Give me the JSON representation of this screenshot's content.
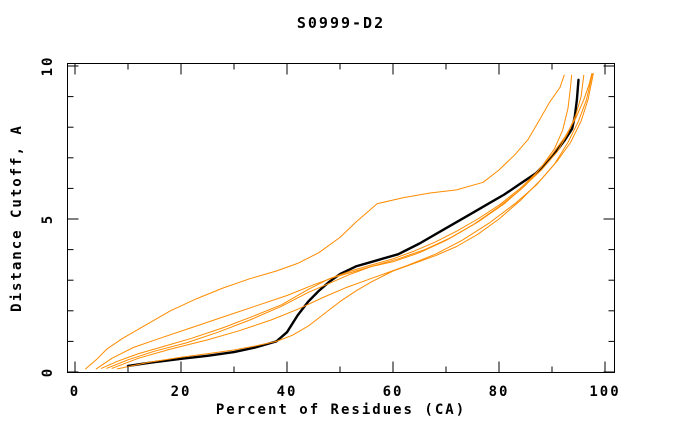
{
  "chart_data": {
    "type": "line",
    "title": "S0999-D2",
    "xlabel": "Percent of Residues (CA)",
    "ylabel": "Distance Cutoff, A",
    "xlim": [
      0,
      100
    ],
    "ylim": [
      0,
      10
    ],
    "x_major_ticks": [
      0,
      20,
      40,
      60,
      80,
      100
    ],
    "x_minor_ticks": [
      10,
      30,
      50,
      70,
      90
    ],
    "y_major_ticks": [
      0,
      5,
      10
    ],
    "y_minor_ticks": [
      1,
      2,
      3,
      4,
      6,
      7,
      8,
      9
    ],
    "grid": false,
    "legend": "none",
    "background_color": "#ffffff",
    "axis_color": "#000000",
    "model_color": "#000000",
    "reference_color": "#ff8c00",
    "series": [
      {
        "name": "black-model",
        "color": "#000000",
        "width": 2.4,
        "points": [
          [
            10,
            0.2
          ],
          [
            14,
            0.3
          ],
          [
            20,
            0.43
          ],
          [
            25,
            0.53
          ],
          [
            30,
            0.65
          ],
          [
            34,
            0.8
          ],
          [
            38,
            1.0
          ],
          [
            40,
            1.3
          ],
          [
            42,
            1.85
          ],
          [
            44,
            2.3
          ],
          [
            46,
            2.65
          ],
          [
            48,
            2.95
          ],
          [
            50,
            3.2
          ],
          [
            53,
            3.45
          ],
          [
            57,
            3.65
          ],
          [
            61,
            3.85
          ],
          [
            65,
            4.2
          ],
          [
            70,
            4.7
          ],
          [
            75,
            5.2
          ],
          [
            78,
            5.5
          ],
          [
            81,
            5.8
          ],
          [
            84,
            6.15
          ],
          [
            87,
            6.5
          ],
          [
            89,
            6.85
          ],
          [
            91,
            7.25
          ],
          [
            92.5,
            7.6
          ],
          [
            93.8,
            7.95
          ],
          [
            94.3,
            8.35
          ],
          [
            94.7,
            8.9
          ],
          [
            95,
            9.55
          ]
        ]
      },
      {
        "name": "orange-1",
        "color": "#ff8c00",
        "width": 1,
        "points": [
          [
            2,
            0.1
          ],
          [
            4,
            0.4
          ],
          [
            6,
            0.75
          ],
          [
            9,
            1.1
          ],
          [
            13,
            1.5
          ],
          [
            18,
            2.0
          ],
          [
            23,
            2.4
          ],
          [
            28,
            2.75
          ],
          [
            33,
            3.05
          ],
          [
            38,
            3.3
          ],
          [
            42,
            3.55
          ],
          [
            46,
            3.9
          ],
          [
            50,
            4.4
          ],
          [
            53,
            4.9
          ],
          [
            57,
            5.5
          ],
          [
            62,
            5.7
          ],
          [
            67,
            5.85
          ],
          [
            72,
            5.95
          ],
          [
            77,
            6.2
          ],
          [
            80,
            6.6
          ],
          [
            83,
            7.1
          ],
          [
            85.5,
            7.6
          ],
          [
            87.5,
            8.2
          ],
          [
            89.5,
            8.8
          ],
          [
            91.5,
            9.3
          ],
          [
            92.3,
            9.7
          ]
        ]
      },
      {
        "name": "orange-2",
        "color": "#ff8c00",
        "width": 1,
        "points": [
          [
            5,
            0.12
          ],
          [
            8,
            0.35
          ],
          [
            12,
            0.6
          ],
          [
            17,
            0.85
          ],
          [
            22,
            1.1
          ],
          [
            28,
            1.45
          ],
          [
            34,
            1.85
          ],
          [
            39,
            2.2
          ],
          [
            44,
            2.7
          ],
          [
            48,
            3.05
          ],
          [
            52,
            3.3
          ],
          [
            56,
            3.5
          ],
          [
            60,
            3.7
          ],
          [
            64,
            3.95
          ],
          [
            68,
            4.25
          ],
          [
            72,
            4.6
          ],
          [
            76,
            5.0
          ],
          [
            80,
            5.45
          ],
          [
            84,
            6.0
          ],
          [
            87,
            6.5
          ],
          [
            90,
            7.1
          ],
          [
            92.5,
            7.7
          ],
          [
            94.5,
            8.3
          ],
          [
            96,
            8.9
          ],
          [
            97,
            9.4
          ],
          [
            97.5,
            9.75
          ]
        ]
      },
      {
        "name": "orange-3",
        "color": "#ff8c00",
        "width": 1,
        "points": [
          [
            6,
            0.12
          ],
          [
            10,
            0.4
          ],
          [
            15,
            0.68
          ],
          [
            21,
            0.95
          ],
          [
            27,
            1.3
          ],
          [
            33,
            1.7
          ],
          [
            39,
            2.15
          ],
          [
            44,
            2.6
          ],
          [
            48,
            2.9
          ],
          [
            52,
            3.2
          ],
          [
            56,
            3.45
          ],
          [
            60,
            3.6
          ],
          [
            65,
            3.9
          ],
          [
            70,
            4.3
          ],
          [
            75,
            4.8
          ],
          [
            80,
            5.4
          ],
          [
            84,
            5.95
          ],
          [
            88,
            6.6
          ],
          [
            91,
            7.2
          ],
          [
            93,
            7.8
          ],
          [
            94.5,
            8.4
          ],
          [
            95.5,
            9.0
          ],
          [
            96,
            9.7
          ]
        ]
      },
      {
        "name": "orange-4",
        "color": "#ff8c00",
        "width": 1,
        "points": [
          [
            7,
            0.12
          ],
          [
            12,
            0.45
          ],
          [
            18,
            0.75
          ],
          [
            25,
            1.05
          ],
          [
            31,
            1.35
          ],
          [
            37,
            1.7
          ],
          [
            42,
            2.05
          ],
          [
            47,
            2.45
          ],
          [
            51,
            2.75
          ],
          [
            55,
            3.0
          ],
          [
            59,
            3.25
          ],
          [
            63,
            3.5
          ],
          [
            68,
            3.85
          ],
          [
            73,
            4.3
          ],
          [
            78,
            4.85
          ],
          [
            83,
            5.5
          ],
          [
            87,
            6.1
          ],
          [
            90.5,
            6.8
          ],
          [
            93,
            7.5
          ],
          [
            95,
            8.2
          ],
          [
            96.5,
            8.9
          ],
          [
            97.3,
            9.5
          ],
          [
            97.6,
            9.75
          ]
        ]
      },
      {
        "name": "orange-5",
        "color": "#ff8c00",
        "width": 1,
        "points": [
          [
            8,
            0.1
          ],
          [
            14,
            0.32
          ],
          [
            20,
            0.48
          ],
          [
            26,
            0.62
          ],
          [
            30,
            0.72
          ],
          [
            34,
            0.85
          ],
          [
            38,
            1.0
          ],
          [
            41,
            1.2
          ],
          [
            44,
            1.5
          ],
          [
            47,
            1.9
          ],
          [
            50,
            2.3
          ],
          [
            53,
            2.65
          ],
          [
            56,
            2.95
          ],
          [
            60,
            3.3
          ],
          [
            64,
            3.55
          ],
          [
            68,
            3.8
          ],
          [
            72,
            4.1
          ],
          [
            76,
            4.5
          ],
          [
            80,
            5.0
          ],
          [
            84,
            5.6
          ],
          [
            88,
            6.3
          ],
          [
            91,
            6.9
          ],
          [
            93.5,
            7.5
          ],
          [
            95.5,
            8.2
          ],
          [
            96.8,
            8.9
          ],
          [
            97.5,
            9.5
          ],
          [
            97.8,
            9.75
          ]
        ]
      },
      {
        "name": "orange-6",
        "color": "#ff8c00",
        "width": 1,
        "points": [
          [
            4,
            0.1
          ],
          [
            7,
            0.45
          ],
          [
            11,
            0.8
          ],
          [
            16,
            1.1
          ],
          [
            22,
            1.45
          ],
          [
            28,
            1.8
          ],
          [
            34,
            2.15
          ],
          [
            40,
            2.5
          ],
          [
            45,
            2.85
          ],
          [
            49,
            3.1
          ],
          [
            53,
            3.3
          ],
          [
            57,
            3.5
          ],
          [
            61,
            3.7
          ],
          [
            66,
            4.0
          ],
          [
            71,
            4.4
          ],
          [
            76,
            4.9
          ],
          [
            81,
            5.5
          ],
          [
            85,
            6.1
          ],
          [
            88,
            6.7
          ],
          [
            90.5,
            7.3
          ],
          [
            92,
            7.9
          ],
          [
            93,
            8.6
          ],
          [
            93.5,
            9.3
          ],
          [
            93.7,
            9.7
          ]
        ]
      }
    ]
  }
}
